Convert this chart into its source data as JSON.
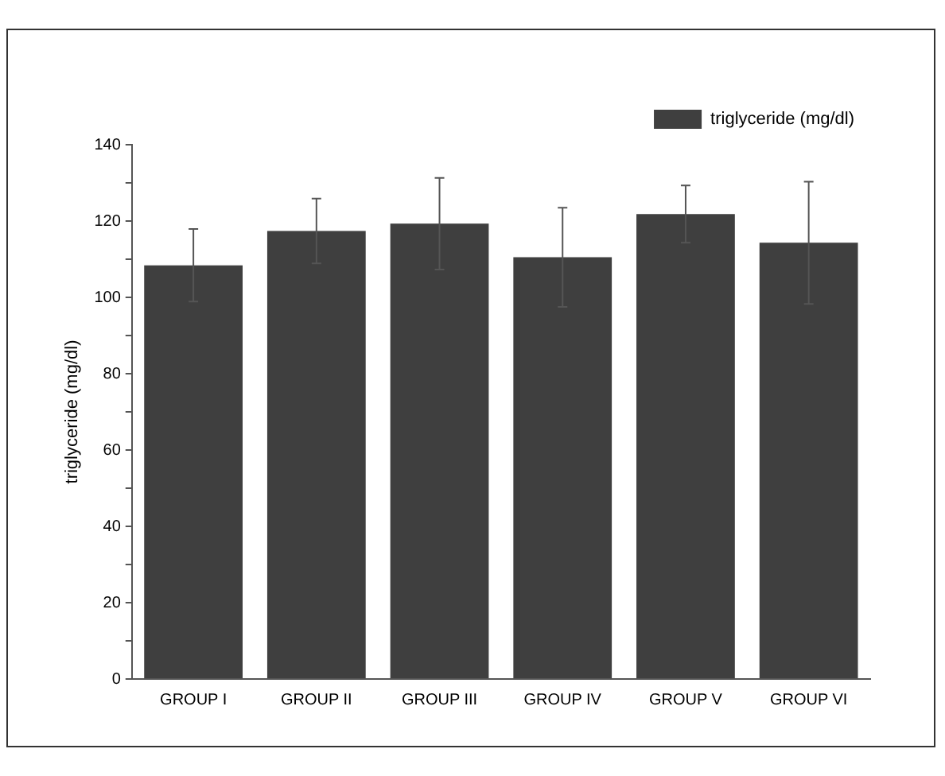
{
  "chart_data": {
    "type": "bar",
    "ylabel": "triglyceride (mg/dl)",
    "categories": [
      "GROUP I",
      "GROUP II",
      "GROUP III",
      "GROUP IV",
      "GROUP V",
      "GROUP VI"
    ],
    "series": [
      {
        "name": "triglyceride (mg/dl)",
        "color": "#3f3f3f",
        "values": [
          108.4,
          117.4,
          119.3,
          110.5,
          121.8,
          114.3
        ],
        "errors": [
          9.5,
          8.5,
          12,
          13,
          7.5,
          16
        ]
      }
    ],
    "ylim": [
      0,
      140
    ],
    "yticks": [
      0,
      {
        "value": 10,
        "label": null
      },
      20,
      {
        "value": 30,
        "label": null
      },
      40,
      {
        "value": 50,
        "label": null
      },
      60,
      {
        "value": 70,
        "label": null
      },
      80,
      {
        "value": 90,
        "label": null
      },
      100,
      {
        "value": 110,
        "label": null
      },
      120,
      {
        "value": 130,
        "label": null
      },
      140
    ],
    "grid": false,
    "legend": "top right"
  }
}
